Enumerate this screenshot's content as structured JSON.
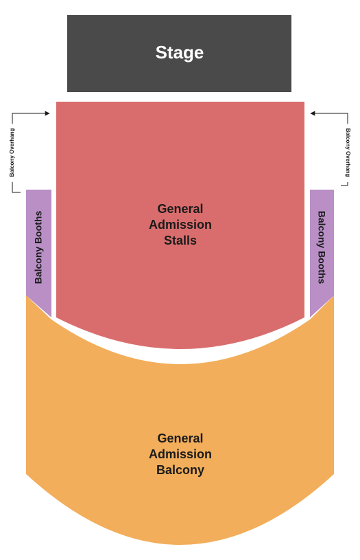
{
  "stage": {
    "label": "Stage"
  },
  "sections": {
    "stalls": {
      "lines": [
        "General",
        "Admission",
        "Stalls"
      ]
    },
    "balcony": {
      "lines": [
        "General",
        "Admission",
        "Balcony"
      ]
    },
    "booths_left": {
      "label": "Balcony Booths"
    },
    "booths_right": {
      "label": "Balcony Booths"
    }
  },
  "annotations": {
    "left": "Balcony Overhang",
    "right": "Balcony Overhang"
  }
}
